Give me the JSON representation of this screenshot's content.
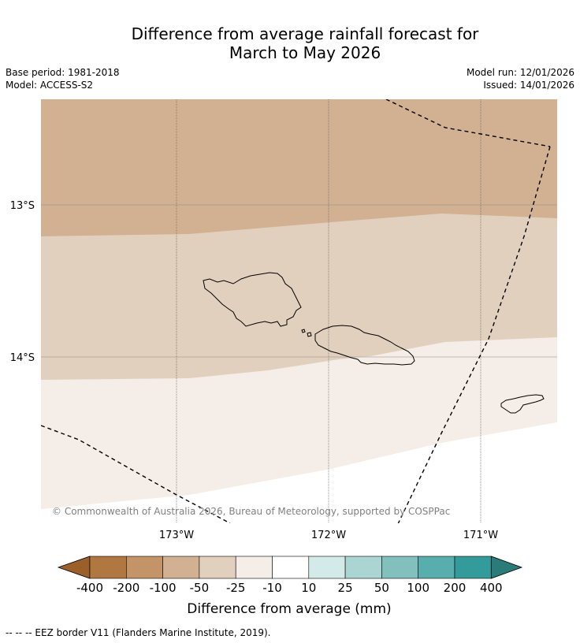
{
  "title": {
    "line1": "Difference from average rainfall forecast for",
    "line2": "March to May 2026"
  },
  "meta": {
    "base_period": "Base period: 1981-2018",
    "model": "Model: ACCESS-S2",
    "model_run": "Model run: 12/01/2026",
    "issued": "Issued: 14/01/2026"
  },
  "map": {
    "lat_labels": [
      "13°S",
      "14°S"
    ],
    "lon_labels": [
      "173°W",
      "172°W",
      "171°W"
    ],
    "copyright": "© Commonwealth of Australia 2026, Bureau of Meteorology, supported by COSPPac",
    "zone_colors": [
      "#d2b193",
      "#e2d0be",
      "#f5ede7",
      "#ffffff"
    ]
  },
  "colorbar": {
    "tick_labels": [
      "-400",
      "-200",
      "-100",
      "-50",
      "-25",
      "-10",
      "10",
      "25",
      "50",
      "100",
      "200",
      "400"
    ],
    "colors": [
      "#9b5f2a",
      "#b07840",
      "#c39468",
      "#d2b193",
      "#e2d0be",
      "#f5ede7",
      "#ffffff",
      "#d4eae8",
      "#abd5d2",
      "#82c0bd",
      "#58aeac",
      "#339b99",
      "#2a7b7a"
    ],
    "label": "Difference from average (mm)"
  },
  "footer": "-- -- -- EEZ border V11 (Flanders Marine Institute, 2019)."
}
